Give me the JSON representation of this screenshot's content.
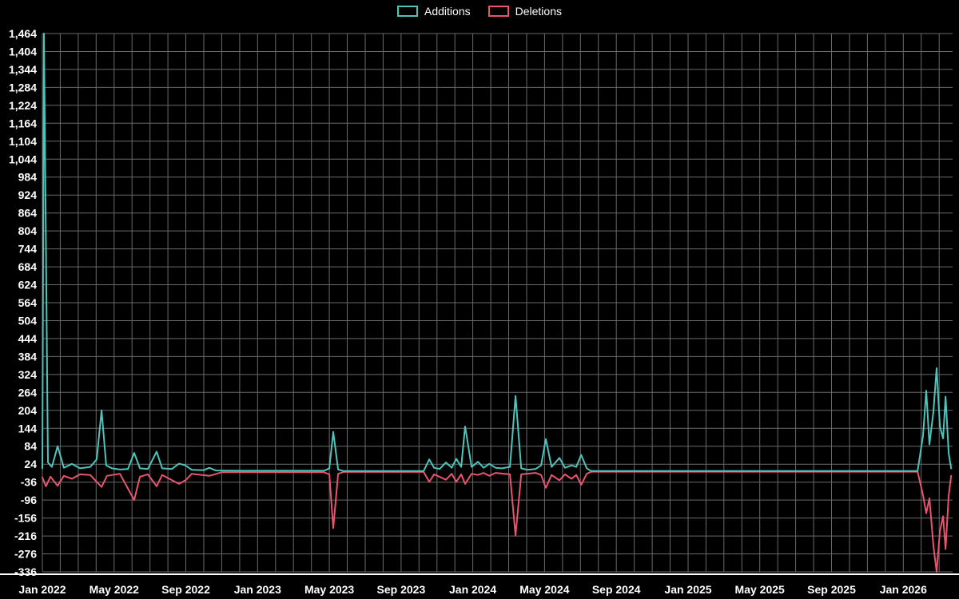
{
  "page": {
    "background": "#000000"
  },
  "chart_data": {
    "type": "line",
    "title": "",
    "legend_position": "top-center",
    "grid": true,
    "grid_color": "#6a6a6a",
    "axis_color": "#ffffff",
    "text_color": "#ffffff",
    "background": "#000000",
    "x_axis": {
      "label": "",
      "unit": "months_since_jan_2022",
      "min": 0,
      "max": 50.75,
      "ticks": [
        {
          "pos": 0,
          "label": "Jan 2022"
        },
        {
          "pos": 4,
          "label": "May 2022"
        },
        {
          "pos": 8,
          "label": "Sep 2022"
        },
        {
          "pos": 12,
          "label": "Jan 2023"
        },
        {
          "pos": 16,
          "label": "May 2023"
        },
        {
          "pos": 20,
          "label": "Sep 2023"
        },
        {
          "pos": 24,
          "label": "Jan 2024"
        },
        {
          "pos": 28,
          "label": "May 2024"
        },
        {
          "pos": 32,
          "label": "Sep 2024"
        },
        {
          "pos": 36,
          "label": "Jan 2025"
        },
        {
          "pos": 40,
          "label": "May 2025"
        },
        {
          "pos": 44,
          "label": "Sep 2025"
        },
        {
          "pos": 48,
          "label": "Jan 2026"
        }
      ]
    },
    "y_axis": {
      "min": -336,
      "max": 1464,
      "step": 60
    },
    "series": [
      {
        "name": "Additions",
        "color": "#4dc4bc",
        "points": [
          [
            0,
            10
          ],
          [
            0.09,
            1464
          ],
          [
            0.31,
            30
          ],
          [
            0.53,
            15
          ],
          [
            0.85,
            84
          ],
          [
            1.2,
            12
          ],
          [
            1.65,
            25
          ],
          [
            2.1,
            10
          ],
          [
            2.67,
            15
          ],
          [
            3.03,
            40
          ],
          [
            3.3,
            204
          ],
          [
            3.56,
            20
          ],
          [
            3.88,
            10
          ],
          [
            4.32,
            6
          ],
          [
            4.77,
            8
          ],
          [
            5.12,
            62
          ],
          [
            5.44,
            10
          ],
          [
            5.88,
            8
          ],
          [
            6.37,
            66
          ],
          [
            6.68,
            10
          ],
          [
            7.22,
            8
          ],
          [
            7.62,
            26
          ],
          [
            7.98,
            20
          ],
          [
            8.33,
            5
          ],
          [
            9.0,
            4
          ],
          [
            9.31,
            12
          ],
          [
            9.67,
            3
          ],
          [
            11,
            2
          ],
          [
            15.7,
            2
          ],
          [
            16.0,
            10
          ],
          [
            16.22,
            132
          ],
          [
            16.49,
            6
          ],
          [
            16.8,
            1
          ],
          [
            21.26,
            1
          ],
          [
            21.57,
            40
          ],
          [
            21.84,
            12
          ],
          [
            22.15,
            8
          ],
          [
            22.5,
            30
          ],
          [
            22.82,
            12
          ],
          [
            23.08,
            42
          ],
          [
            23.35,
            15
          ],
          [
            23.57,
            150
          ],
          [
            23.93,
            15
          ],
          [
            24.29,
            32
          ],
          [
            24.6,
            12
          ],
          [
            24.91,
            25
          ],
          [
            25.27,
            12
          ],
          [
            25.62,
            10
          ],
          [
            26.07,
            15
          ],
          [
            26.38,
            252
          ],
          [
            26.7,
            10
          ],
          [
            27.05,
            5
          ],
          [
            27.5,
            8
          ],
          [
            27.81,
            20
          ],
          [
            28.07,
            108
          ],
          [
            28.39,
            15
          ],
          [
            28.83,
            45
          ],
          [
            29.14,
            12
          ],
          [
            29.5,
            20
          ],
          [
            29.77,
            15
          ],
          [
            30.04,
            55
          ],
          [
            30.35,
            10
          ],
          [
            30.6,
            1
          ],
          [
            48.8,
            1
          ],
          [
            49.1,
            120
          ],
          [
            49.28,
            270
          ],
          [
            49.46,
            90
          ],
          [
            49.68,
            200
          ],
          [
            49.86,
            345
          ],
          [
            50.04,
            150
          ],
          [
            50.22,
            110
          ],
          [
            50.36,
            250
          ],
          [
            50.53,
            60
          ],
          [
            50.67,
            10
          ]
        ]
      },
      {
        "name": "Deletions",
        "color": "#e8556d",
        "points": [
          [
            0,
            -20
          ],
          [
            0.2,
            -50
          ],
          [
            0.45,
            -18
          ],
          [
            0.85,
            -48
          ],
          [
            1.2,
            -15
          ],
          [
            1.65,
            -25
          ],
          [
            2.1,
            -10
          ],
          [
            2.67,
            -12
          ],
          [
            3.3,
            -52
          ],
          [
            3.6,
            -15
          ],
          [
            4.32,
            -8
          ],
          [
            5.12,
            -96
          ],
          [
            5.44,
            -18
          ],
          [
            5.88,
            -10
          ],
          [
            6.37,
            -50
          ],
          [
            6.68,
            -12
          ],
          [
            7.62,
            -42
          ],
          [
            7.98,
            -30
          ],
          [
            8.33,
            -8
          ],
          [
            9.31,
            -15
          ],
          [
            10,
            -3
          ],
          [
            15.7,
            -3
          ],
          [
            16.0,
            -10
          ],
          [
            16.22,
            -190
          ],
          [
            16.49,
            -8
          ],
          [
            16.8,
            -2
          ],
          [
            21.26,
            -2
          ],
          [
            21.57,
            -35
          ],
          [
            21.84,
            -10
          ],
          [
            22.5,
            -28
          ],
          [
            22.82,
            -8
          ],
          [
            23.08,
            -35
          ],
          [
            23.35,
            -10
          ],
          [
            23.57,
            -42
          ],
          [
            23.93,
            -8
          ],
          [
            24.29,
            -12
          ],
          [
            24.6,
            -5
          ],
          [
            24.91,
            -15
          ],
          [
            25.27,
            -5
          ],
          [
            26.07,
            -10
          ],
          [
            26.38,
            -215
          ],
          [
            26.7,
            -10
          ],
          [
            27.5,
            -5
          ],
          [
            27.81,
            -12
          ],
          [
            28.07,
            -55
          ],
          [
            28.39,
            -12
          ],
          [
            28.83,
            -30
          ],
          [
            29.14,
            -10
          ],
          [
            29.5,
            -25
          ],
          [
            29.77,
            -12
          ],
          [
            30.04,
            -45
          ],
          [
            30.35,
            -8
          ],
          [
            30.6,
            -1
          ],
          [
            48.8,
            -1
          ],
          [
            49.1,
            -80
          ],
          [
            49.28,
            -140
          ],
          [
            49.46,
            -90
          ],
          [
            49.68,
            -250
          ],
          [
            49.86,
            -336
          ],
          [
            50.04,
            -200
          ],
          [
            50.22,
            -150
          ],
          [
            50.36,
            -260
          ],
          [
            50.53,
            -80
          ],
          [
            50.67,
            -15
          ]
        ]
      }
    ]
  }
}
